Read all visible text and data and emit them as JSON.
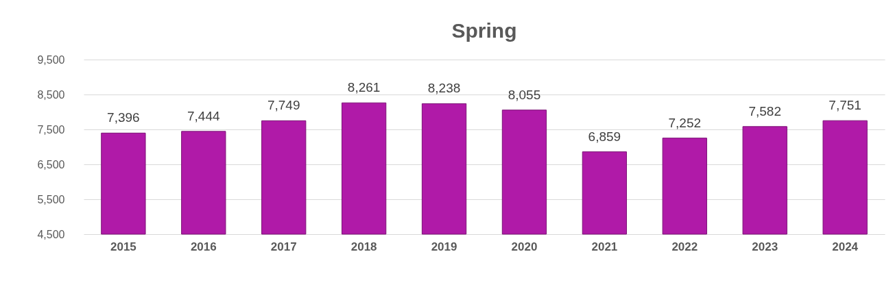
{
  "chart_data": {
    "type": "bar",
    "title": "Spring",
    "categories": [
      "2015",
      "2016",
      "2017",
      "2018",
      "2019",
      "2020",
      "2021",
      "2022",
      "2023",
      "2024"
    ],
    "values": [
      7396,
      7444,
      7749,
      8261,
      8238,
      8055,
      6859,
      7252,
      7582,
      7751
    ],
    "value_labels": [
      "7,396",
      "7,444",
      "7,749",
      "8,261",
      "8,238",
      "8,055",
      "6,859",
      "7,252",
      "7,582",
      "7,751"
    ],
    "color": "#b01aa8",
    "ylim": [
      4500,
      9500
    ],
    "yticks": [
      {
        "value": 4500,
        "label": "4,500"
      },
      {
        "value": 5500,
        "label": "5,500"
      },
      {
        "value": 6500,
        "label": "6,500"
      },
      {
        "value": 7500,
        "label": "7,500"
      },
      {
        "value": 8500,
        "label": "8,500"
      },
      {
        "value": 9500,
        "label": "9,500"
      }
    ],
    "grid": "y"
  }
}
